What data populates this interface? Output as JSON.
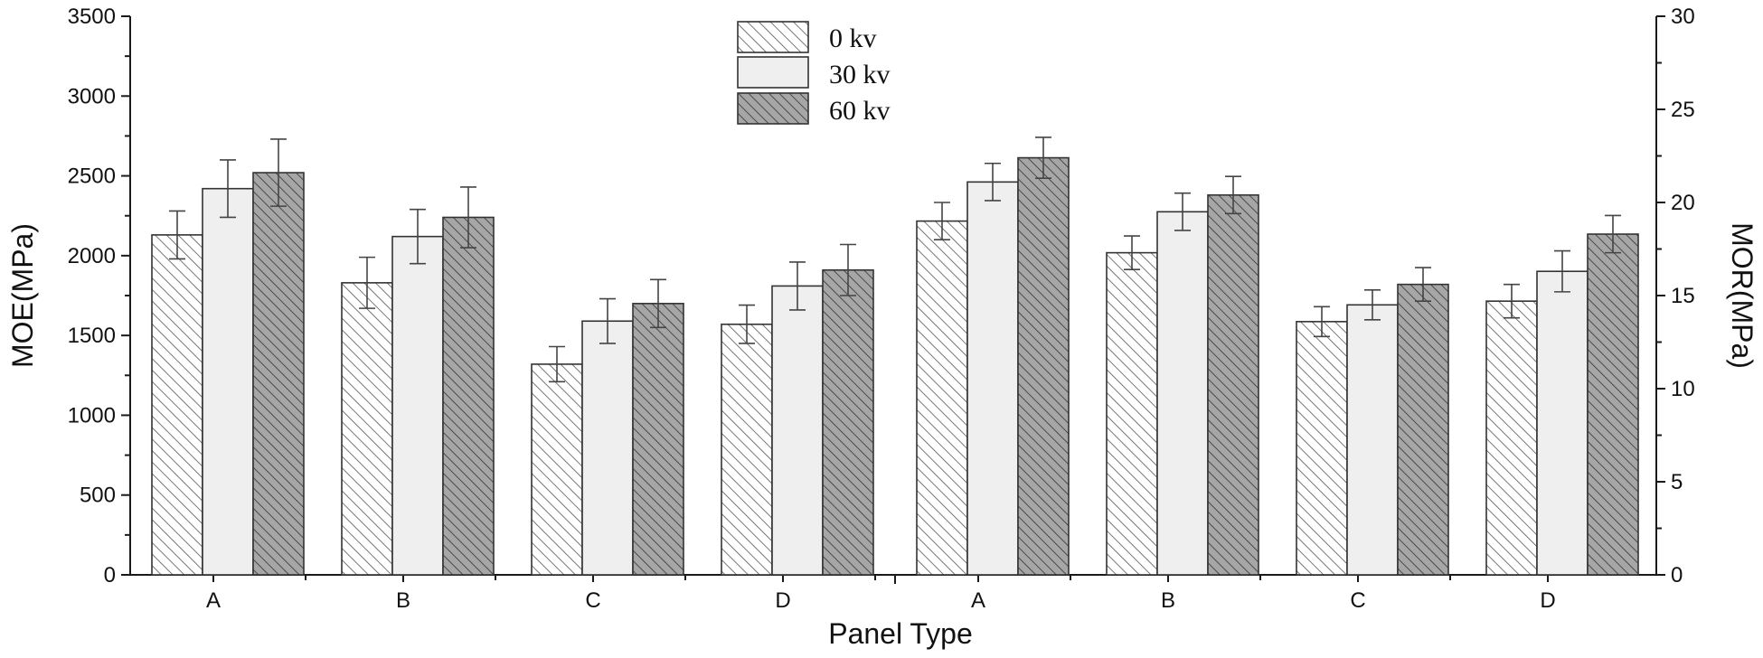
{
  "chart_data": {
    "type": "bar",
    "xlabel": "Panel Type",
    "left_axis": {
      "label": "MOE(MPa)",
      "ylim": [
        0,
        3500
      ],
      "ticks": [
        0,
        500,
        1000,
        1500,
        2000,
        2500,
        3000,
        3500
      ]
    },
    "right_axis": {
      "label": "MOR(MPa)",
      "ylim": [
        0,
        30
      ],
      "ticks": [
        0,
        5,
        10,
        15,
        20,
        25,
        30
      ]
    },
    "legend": {
      "position": "top-center",
      "entries": [
        "0 kv",
        "30 kv",
        "60 kv"
      ]
    },
    "series_styles": {
      "0 kv": {
        "fill": "#ffffff",
        "hatch": true,
        "hatch_color": "#555555"
      },
      "30 kv": {
        "fill": "#efefef",
        "hatch": false
      },
      "60 kv": {
        "fill": "#a6a6a6",
        "hatch": true,
        "hatch_color": "#333333"
      }
    },
    "panels": [
      {
        "metric": "MOE",
        "axis": "left",
        "categories": [
          "A",
          "B",
          "C",
          "D"
        ],
        "series": [
          {
            "name": "0 kv",
            "values": [
              2130,
              1830,
              1320,
              1570
            ],
            "errors": [
              150,
              160,
              110,
              120
            ]
          },
          {
            "name": "30 kv",
            "values": [
              2420,
              2120,
              1590,
              1810
            ],
            "errors": [
              180,
              170,
              140,
              150
            ]
          },
          {
            "name": "60 kv",
            "values": [
              2520,
              2240,
              1700,
              1910
            ],
            "errors": [
              210,
              190,
              150,
              160
            ]
          }
        ]
      },
      {
        "metric": "MOR",
        "axis": "right",
        "categories": [
          "A",
          "B",
          "C",
          "D"
        ],
        "series": [
          {
            "name": "0 kv",
            "values": [
              19.0,
              17.3,
              13.6,
              14.7
            ],
            "errors": [
              1.0,
              0.9,
              0.8,
              0.9
            ]
          },
          {
            "name": "30 kv",
            "values": [
              21.1,
              19.5,
              14.5,
              16.3
            ],
            "errors": [
              1.0,
              1.0,
              0.8,
              1.1
            ]
          },
          {
            "name": "60 kv",
            "values": [
              22.4,
              20.4,
              15.6,
              18.3
            ],
            "errors": [
              1.1,
              1.0,
              0.9,
              1.0
            ]
          }
        ]
      }
    ]
  }
}
